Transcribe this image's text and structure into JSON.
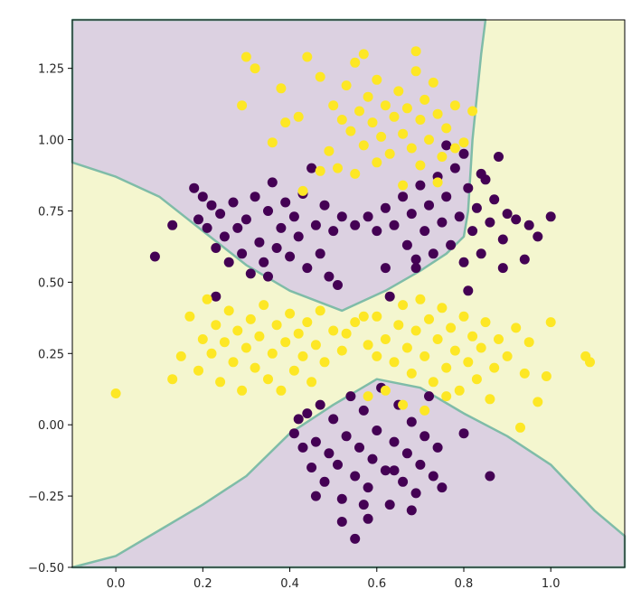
{
  "chart_data": {
    "type": "scatter",
    "title": "",
    "xlabel": "",
    "ylabel": "",
    "xlim": [
      -0.1,
      1.17
    ],
    "ylim": [
      -0.5,
      1.42
    ],
    "grid": false,
    "legend": "none",
    "x_ticks": [
      "0.0",
      "0.2",
      "0.4",
      "0.6",
      "0.8",
      "1.0"
    ],
    "y_ticks": [
      "−0.50",
      "−0.25",
      "0.00",
      "0.25",
      "0.50",
      "0.75",
      "1.00",
      "1.25"
    ],
    "colors": {
      "class0": "#440154",
      "class1": "#fde725",
      "region0": "#dcd1e1",
      "region1": "#f4f6cf",
      "boundary": "#7fbca8"
    },
    "decision_regions": [
      {
        "class": 0,
        "polygon": [
          [
            -0.1,
            0.92
          ],
          [
            0.0,
            0.87
          ],
          [
            0.1,
            0.8
          ],
          [
            0.2,
            0.68
          ],
          [
            0.3,
            0.56
          ],
          [
            0.4,
            0.47
          ],
          [
            0.52,
            0.4
          ],
          [
            0.62,
            0.47
          ],
          [
            0.7,
            0.54
          ],
          [
            0.76,
            0.6
          ],
          [
            0.8,
            0.66
          ],
          [
            0.81,
            0.75
          ],
          [
            0.82,
            1.0
          ],
          [
            0.83,
            1.15
          ],
          [
            0.84,
            1.3
          ],
          [
            0.85,
            1.42
          ],
          [
            -0.1,
            1.42
          ]
        ]
      },
      {
        "class": 0,
        "polygon": [
          [
            -0.1,
            -0.5
          ],
          [
            0.0,
            -0.46
          ],
          [
            0.1,
            -0.37
          ],
          [
            0.2,
            -0.28
          ],
          [
            0.3,
            -0.18
          ],
          [
            0.4,
            -0.03
          ],
          [
            0.5,
            0.07
          ],
          [
            0.6,
            0.16
          ],
          [
            0.7,
            0.13
          ],
          [
            0.8,
            0.04
          ],
          [
            0.9,
            -0.04
          ],
          [
            1.0,
            -0.14
          ],
          [
            1.1,
            -0.3
          ],
          [
            1.17,
            -0.39
          ],
          [
            1.17,
            -0.5
          ]
        ]
      }
    ],
    "series": [
      {
        "class": 0,
        "points": [
          [
            0.18,
            0.83
          ],
          [
            0.19,
            0.72
          ],
          [
            0.2,
            0.8
          ],
          [
            0.21,
            0.69
          ],
          [
            0.22,
            0.77
          ],
          [
            0.23,
            0.62
          ],
          [
            0.24,
            0.74
          ],
          [
            0.25,
            0.66
          ],
          [
            0.26,
            0.57
          ],
          [
            0.27,
            0.78
          ],
          [
            0.28,
            0.69
          ],
          [
            0.29,
            0.6
          ],
          [
            0.3,
            0.72
          ],
          [
            0.31,
            0.53
          ],
          [
            0.32,
            0.8
          ],
          [
            0.33,
            0.64
          ],
          [
            0.34,
            0.57
          ],
          [
            0.35,
            0.75
          ],
          [
            0.36,
            0.85
          ],
          [
            0.37,
            0.62
          ],
          [
            0.38,
            0.69
          ],
          [
            0.39,
            0.78
          ],
          [
            0.4,
            0.59
          ],
          [
            0.41,
            0.73
          ],
          [
            0.42,
            0.66
          ],
          [
            0.43,
            0.81
          ],
          [
            0.44,
            0.55
          ],
          [
            0.45,
            0.9
          ],
          [
            0.46,
            0.7
          ],
          [
            0.47,
            0.6
          ],
          [
            0.48,
            0.77
          ],
          [
            0.5,
            0.68
          ],
          [
            0.52,
            0.73
          ],
          [
            0.55,
            0.7
          ],
          [
            0.58,
            0.73
          ],
          [
            0.6,
            0.68
          ],
          [
            0.62,
            0.76
          ],
          [
            0.64,
            0.7
          ],
          [
            0.66,
            0.8
          ],
          [
            0.67,
            0.63
          ],
          [
            0.68,
            0.74
          ],
          [
            0.69,
            0.55
          ],
          [
            0.7,
            0.84
          ],
          [
            0.71,
            0.68
          ],
          [
            0.72,
            0.77
          ],
          [
            0.73,
            0.6
          ],
          [
            0.74,
            0.87
          ],
          [
            0.75,
            0.71
          ],
          [
            0.76,
            0.8
          ],
          [
            0.77,
            0.63
          ],
          [
            0.78,
            0.9
          ],
          [
            0.79,
            0.73
          ],
          [
            0.8,
            0.57
          ],
          [
            0.81,
            0.83
          ],
          [
            0.82,
            0.68
          ],
          [
            0.83,
            0.76
          ],
          [
            0.84,
            0.6
          ],
          [
            0.85,
            0.86
          ],
          [
            0.86,
            0.71
          ],
          [
            0.87,
            0.79
          ],
          [
            0.88,
            0.94
          ],
          [
            0.89,
            0.65
          ],
          [
            0.9,
            0.74
          ],
          [
            0.92,
            0.72
          ],
          [
            0.94,
            0.58
          ],
          [
            0.95,
            0.7
          ],
          [
            0.97,
            0.66
          ],
          [
            1.0,
            0.73
          ],
          [
            0.13,
            0.7
          ],
          [
            0.09,
            0.59
          ],
          [
            0.23,
            0.45
          ],
          [
            0.35,
            0.52
          ],
          [
            0.49,
            0.52
          ],
          [
            0.62,
            0.55
          ],
          [
            0.81,
            0.47
          ],
          [
            0.89,
            0.55
          ],
          [
            0.51,
            0.49
          ],
          [
            0.63,
            0.45
          ],
          [
            0.84,
            0.88
          ],
          [
            0.8,
            0.95
          ],
          [
            0.76,
            0.98
          ],
          [
            0.69,
            0.58
          ],
          [
            0.41,
            -0.03
          ],
          [
            0.43,
            -0.08
          ],
          [
            0.44,
            0.04
          ],
          [
            0.45,
            -0.15
          ],
          [
            0.46,
            -0.06
          ],
          [
            0.47,
            0.07
          ],
          [
            0.48,
            -0.2
          ],
          [
            0.49,
            -0.1
          ],
          [
            0.5,
            0.02
          ],
          [
            0.51,
            -0.14
          ],
          [
            0.52,
            -0.26
          ],
          [
            0.53,
            -0.04
          ],
          [
            0.54,
            0.1
          ],
          [
            0.55,
            -0.18
          ],
          [
            0.56,
            -0.08
          ],
          [
            0.57,
            0.05
          ],
          [
            0.58,
            -0.22
          ],
          [
            0.59,
            -0.12
          ],
          [
            0.6,
            -0.02
          ],
          [
            0.61,
            0.13
          ],
          [
            0.62,
            -0.16
          ],
          [
            0.63,
            -0.28
          ],
          [
            0.64,
            -0.06
          ],
          [
            0.65,
            0.07
          ],
          [
            0.66,
            -0.2
          ],
          [
            0.67,
            -0.1
          ],
          [
            0.68,
            0.01
          ],
          [
            0.69,
            -0.24
          ],
          [
            0.7,
            -0.14
          ],
          [
            0.71,
            -0.04
          ],
          [
            0.72,
            0.1
          ],
          [
            0.73,
            -0.18
          ],
          [
            0.74,
            -0.08
          ],
          [
            0.75,
            -0.22
          ],
          [
            0.52,
            -0.34
          ],
          [
            0.55,
            -0.4
          ],
          [
            0.58,
            -0.33
          ],
          [
            0.68,
            -0.3
          ],
          [
            0.8,
            -0.03
          ],
          [
            0.86,
            -0.18
          ],
          [
            0.46,
            -0.25
          ],
          [
            0.42,
            0.02
          ],
          [
            0.57,
            -0.28
          ],
          [
            0.64,
            -0.16
          ]
        ]
      },
      {
        "class": 1,
        "points": [
          [
            0.44,
            1.29
          ],
          [
            0.47,
            1.22
          ],
          [
            0.5,
            1.12
          ],
          [
            0.52,
            1.07
          ],
          [
            0.53,
            1.19
          ],
          [
            0.54,
            1.03
          ],
          [
            0.55,
            1.27
          ],
          [
            0.56,
            1.1
          ],
          [
            0.57,
            0.98
          ],
          [
            0.58,
            1.15
          ],
          [
            0.59,
            1.06
          ],
          [
            0.6,
            1.21
          ],
          [
            0.61,
            1.01
          ],
          [
            0.62,
            1.12
          ],
          [
            0.63,
            0.95
          ],
          [
            0.64,
            1.08
          ],
          [
            0.65,
            1.17
          ],
          [
            0.66,
            1.02
          ],
          [
            0.67,
            1.11
          ],
          [
            0.68,
            0.97
          ],
          [
            0.69,
            1.24
          ],
          [
            0.7,
            1.07
          ],
          [
            0.71,
            1.14
          ],
          [
            0.72,
            1.0
          ],
          [
            0.73,
            1.2
          ],
          [
            0.74,
            1.09
          ],
          [
            0.75,
            0.94
          ],
          [
            0.76,
            1.04
          ],
          [
            0.78,
            1.12
          ],
          [
            0.8,
            0.99
          ],
          [
            0.82,
            1.1
          ],
          [
            0.42,
            1.08
          ],
          [
            0.38,
            1.18
          ],
          [
            0.32,
            1.25
          ],
          [
            0.29,
            1.12
          ],
          [
            0.49,
            0.96
          ],
          [
            0.47,
            0.89
          ],
          [
            0.43,
            0.82
          ],
          [
            0.51,
            0.9
          ],
          [
            0.55,
            0.88
          ],
          [
            0.6,
            0.92
          ],
          [
            0.66,
            0.84
          ],
          [
            0.7,
            0.91
          ],
          [
            0.74,
            0.85
          ],
          [
            0.69,
            1.31
          ],
          [
            0.57,
            1.3
          ],
          [
            0.3,
            1.29
          ],
          [
            0.39,
            1.06
          ],
          [
            0.36,
            0.99
          ],
          [
            0.78,
            0.97
          ],
          [
            0.0,
            0.11
          ],
          [
            0.13,
            0.16
          ],
          [
            0.15,
            0.24
          ],
          [
            0.17,
            0.38
          ],
          [
            0.19,
            0.19
          ],
          [
            0.2,
            0.3
          ],
          [
            0.21,
            0.44
          ],
          [
            0.22,
            0.25
          ],
          [
            0.23,
            0.35
          ],
          [
            0.24,
            0.15
          ],
          [
            0.25,
            0.29
          ],
          [
            0.26,
            0.4
          ],
          [
            0.27,
            0.22
          ],
          [
            0.28,
            0.33
          ],
          [
            0.29,
            0.12
          ],
          [
            0.3,
            0.27
          ],
          [
            0.31,
            0.37
          ],
          [
            0.32,
            0.2
          ],
          [
            0.33,
            0.31
          ],
          [
            0.34,
            0.42
          ],
          [
            0.35,
            0.16
          ],
          [
            0.36,
            0.25
          ],
          [
            0.37,
            0.35
          ],
          [
            0.38,
            0.12
          ],
          [
            0.39,
            0.29
          ],
          [
            0.4,
            0.39
          ],
          [
            0.41,
            0.19
          ],
          [
            0.42,
            0.32
          ],
          [
            0.43,
            0.24
          ],
          [
            0.44,
            0.36
          ],
          [
            0.45,
            0.15
          ],
          [
            0.46,
            0.28
          ],
          [
            0.47,
            0.4
          ],
          [
            0.48,
            0.22
          ],
          [
            0.5,
            0.33
          ],
          [
            0.52,
            0.26
          ],
          [
            0.55,
            0.36
          ],
          [
            0.58,
            0.28
          ],
          [
            0.6,
            0.38
          ],
          [
            0.62,
            0.3
          ],
          [
            0.64,
            0.22
          ],
          [
            0.65,
            0.35
          ],
          [
            0.66,
            0.42
          ],
          [
            0.67,
            0.27
          ],
          [
            0.68,
            0.18
          ],
          [
            0.69,
            0.33
          ],
          [
            0.7,
            0.44
          ],
          [
            0.71,
            0.24
          ],
          [
            0.72,
            0.37
          ],
          [
            0.73,
            0.15
          ],
          [
            0.74,
            0.3
          ],
          [
            0.75,
            0.41
          ],
          [
            0.76,
            0.2
          ],
          [
            0.77,
            0.34
          ],
          [
            0.78,
            0.26
          ],
          [
            0.79,
            0.12
          ],
          [
            0.8,
            0.38
          ],
          [
            0.81,
            0.22
          ],
          [
            0.82,
            0.31
          ],
          [
            0.83,
            0.16
          ],
          [
            0.84,
            0.27
          ],
          [
            0.85,
            0.36
          ],
          [
            0.86,
            0.09
          ],
          [
            0.87,
            0.2
          ],
          [
            0.88,
            0.3
          ],
          [
            0.9,
            0.24
          ],
          [
            0.92,
            0.34
          ],
          [
            0.94,
            0.18
          ],
          [
            0.95,
            0.29
          ],
          [
            0.97,
            0.08
          ],
          [
            1.0,
            0.36
          ],
          [
            0.99,
            0.17
          ],
          [
            1.08,
            0.24
          ],
          [
            1.09,
            0.22
          ],
          [
            0.93,
            -0.01
          ],
          [
            0.58,
            0.1
          ],
          [
            0.62,
            0.12
          ],
          [
            0.66,
            0.07
          ],
          [
            0.71,
            0.05
          ],
          [
            0.76,
            0.1
          ],
          [
            0.53,
            0.32
          ],
          [
            0.57,
            0.38
          ],
          [
            0.6,
            0.24
          ]
        ]
      }
    ]
  }
}
